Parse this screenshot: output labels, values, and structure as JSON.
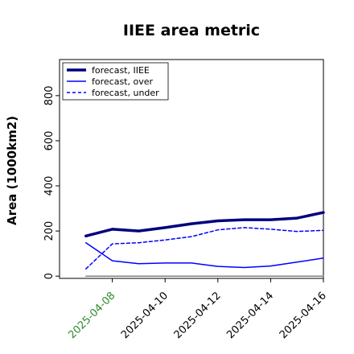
{
  "chart_data": {
    "type": "line",
    "title": "IIEE area metric",
    "xlabel": "",
    "ylabel": "Area (1000km2)",
    "x": [
      "2025-04-07",
      "2025-04-08",
      "2025-04-09",
      "2025-04-10",
      "2025-04-11",
      "2025-04-12",
      "2025-04-13",
      "2025-04-14",
      "2025-04-15",
      "2025-04-16"
    ],
    "xticks": [
      "2025-04-08",
      "2025-04-10",
      "2025-04-12",
      "2025-04-14",
      "2025-04-16"
    ],
    "xtick_colors": [
      "#2e8b2e",
      "#000000",
      "#000000",
      "#000000",
      "#000000"
    ],
    "xlim": [
      "2025-04-06",
      "2025-04-16"
    ],
    "ylim": [
      -10,
      960
    ],
    "yticks": [
      0,
      200,
      400,
      600,
      800
    ],
    "grid": false,
    "legend_position": "upper-left",
    "series": [
      {
        "name": "forecast, IIEE",
        "style": "thick-solid",
        "color": "#00007f",
        "values": [
          178,
          208,
          200,
          215,
          232,
          245,
          250,
          250,
          257,
          282
        ]
      },
      {
        "name": "forecast, over",
        "style": "solid",
        "color": "#0000ff",
        "values": [
          148,
          68,
          55,
          58,
          58,
          43,
          38,
          45,
          62,
          80
        ]
      },
      {
        "name": "forecast, under",
        "style": "dashed",
        "color": "#0000ff",
        "values": [
          32,
          143,
          148,
          160,
          175,
          205,
          215,
          208,
          198,
          203
        ]
      },
      {
        "name": "",
        "style": "baseline",
        "color": "#808080",
        "values": [
          0,
          0,
          0,
          0,
          0,
          0,
          0,
          0,
          0,
          0
        ]
      }
    ]
  }
}
